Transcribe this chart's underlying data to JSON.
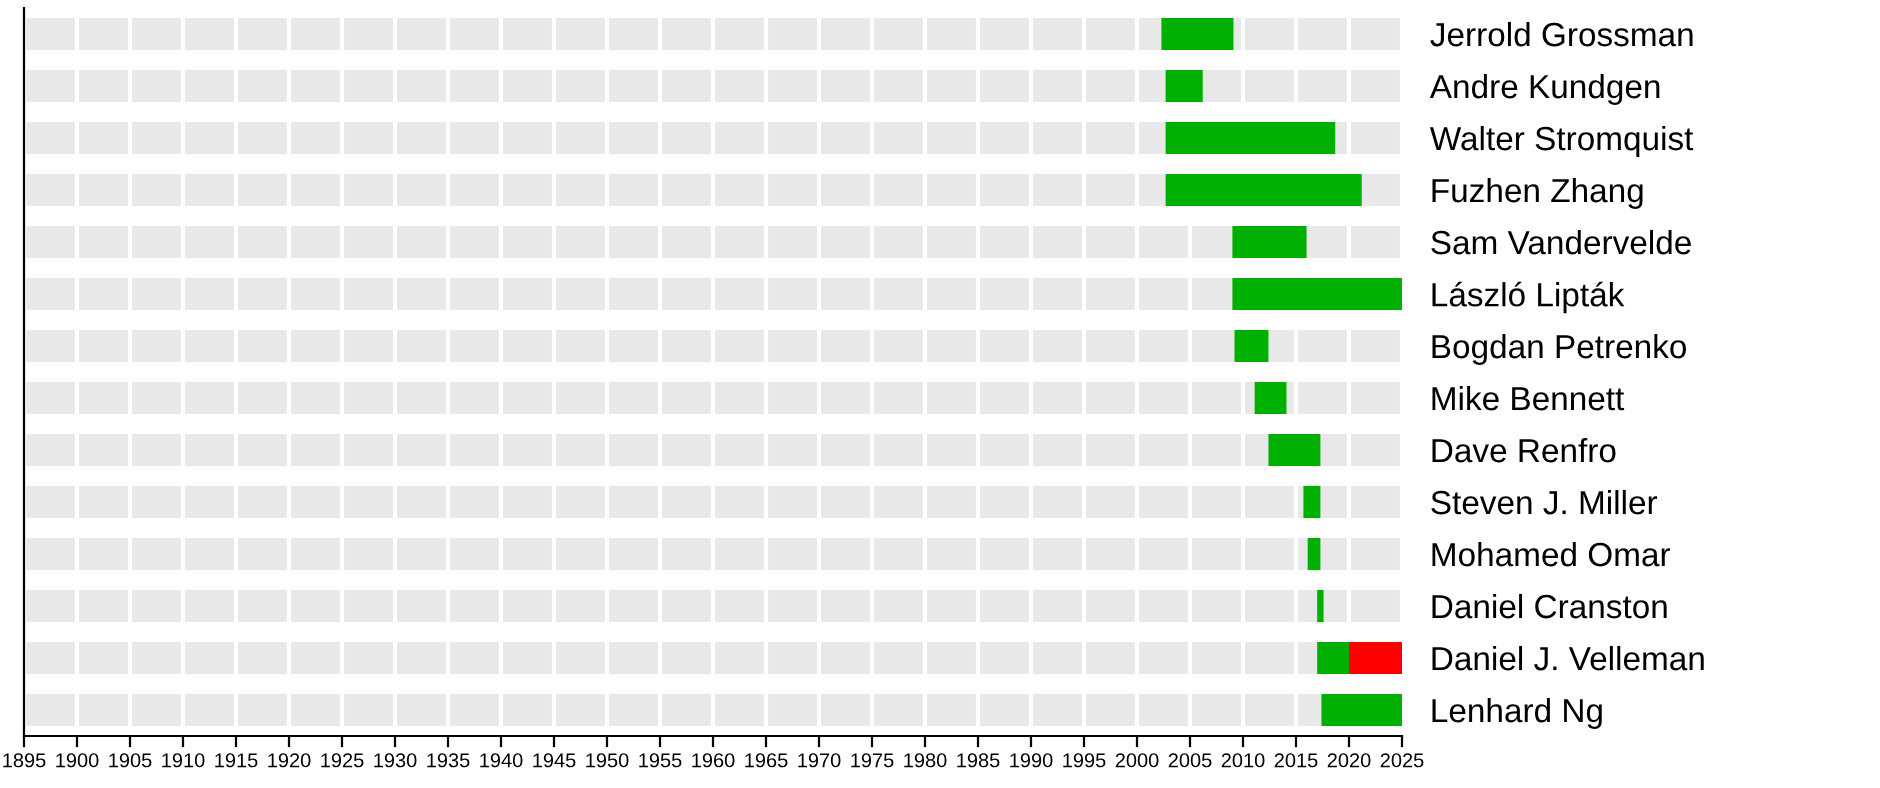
{
  "chart_data": {
    "type": "bar",
    "orientation": "horizontal",
    "categories": [
      "Jerrold Grossman",
      "Andre Kundgen",
      "Walter Stromquist",
      "Fuzhen Zhang",
      "Sam Vandervelde",
      "László Lipták",
      "Bogdan Petrenko",
      "Mike Bennett",
      "Dave Renfro",
      "Steven J. Miller",
      "Mohamed Omar",
      "Daniel Cranston",
      "Daniel J. Velleman",
      "Lenhard Ng"
    ],
    "series": [
      {
        "color": "#00b000",
        "base": [
          2002.3,
          2002.7,
          2002.7,
          2002.7,
          2009,
          2009,
          2009.2,
          2011.1,
          2012.4,
          2015.7,
          2016.1,
          2017,
          2017,
          2017.4
        ],
        "values": [
          6.8,
          3.5,
          16,
          18.5,
          7,
          16,
          3.2,
          3,
          4.9,
          1.6,
          1.2,
          0.6,
          3,
          7.6
        ]
      },
      {
        "color": "#ff0000",
        "base": [
          null,
          null,
          null,
          null,
          null,
          null,
          null,
          null,
          null,
          null,
          null,
          null,
          2020,
          null
        ],
        "values": [
          null,
          null,
          null,
          null,
          null,
          null,
          null,
          null,
          null,
          null,
          null,
          null,
          5,
          null
        ]
      }
    ],
    "xlim": [
      1895,
      2025
    ],
    "xticks": [
      1895,
      1900,
      1905,
      1910,
      1915,
      1920,
      1925,
      1930,
      1935,
      1940,
      1945,
      1950,
      1955,
      1960,
      1965,
      1970,
      1975,
      1980,
      1985,
      1990,
      1995,
      2000,
      2005,
      2010,
      2015,
      2020,
      2025
    ],
    "grid": "x"
  }
}
